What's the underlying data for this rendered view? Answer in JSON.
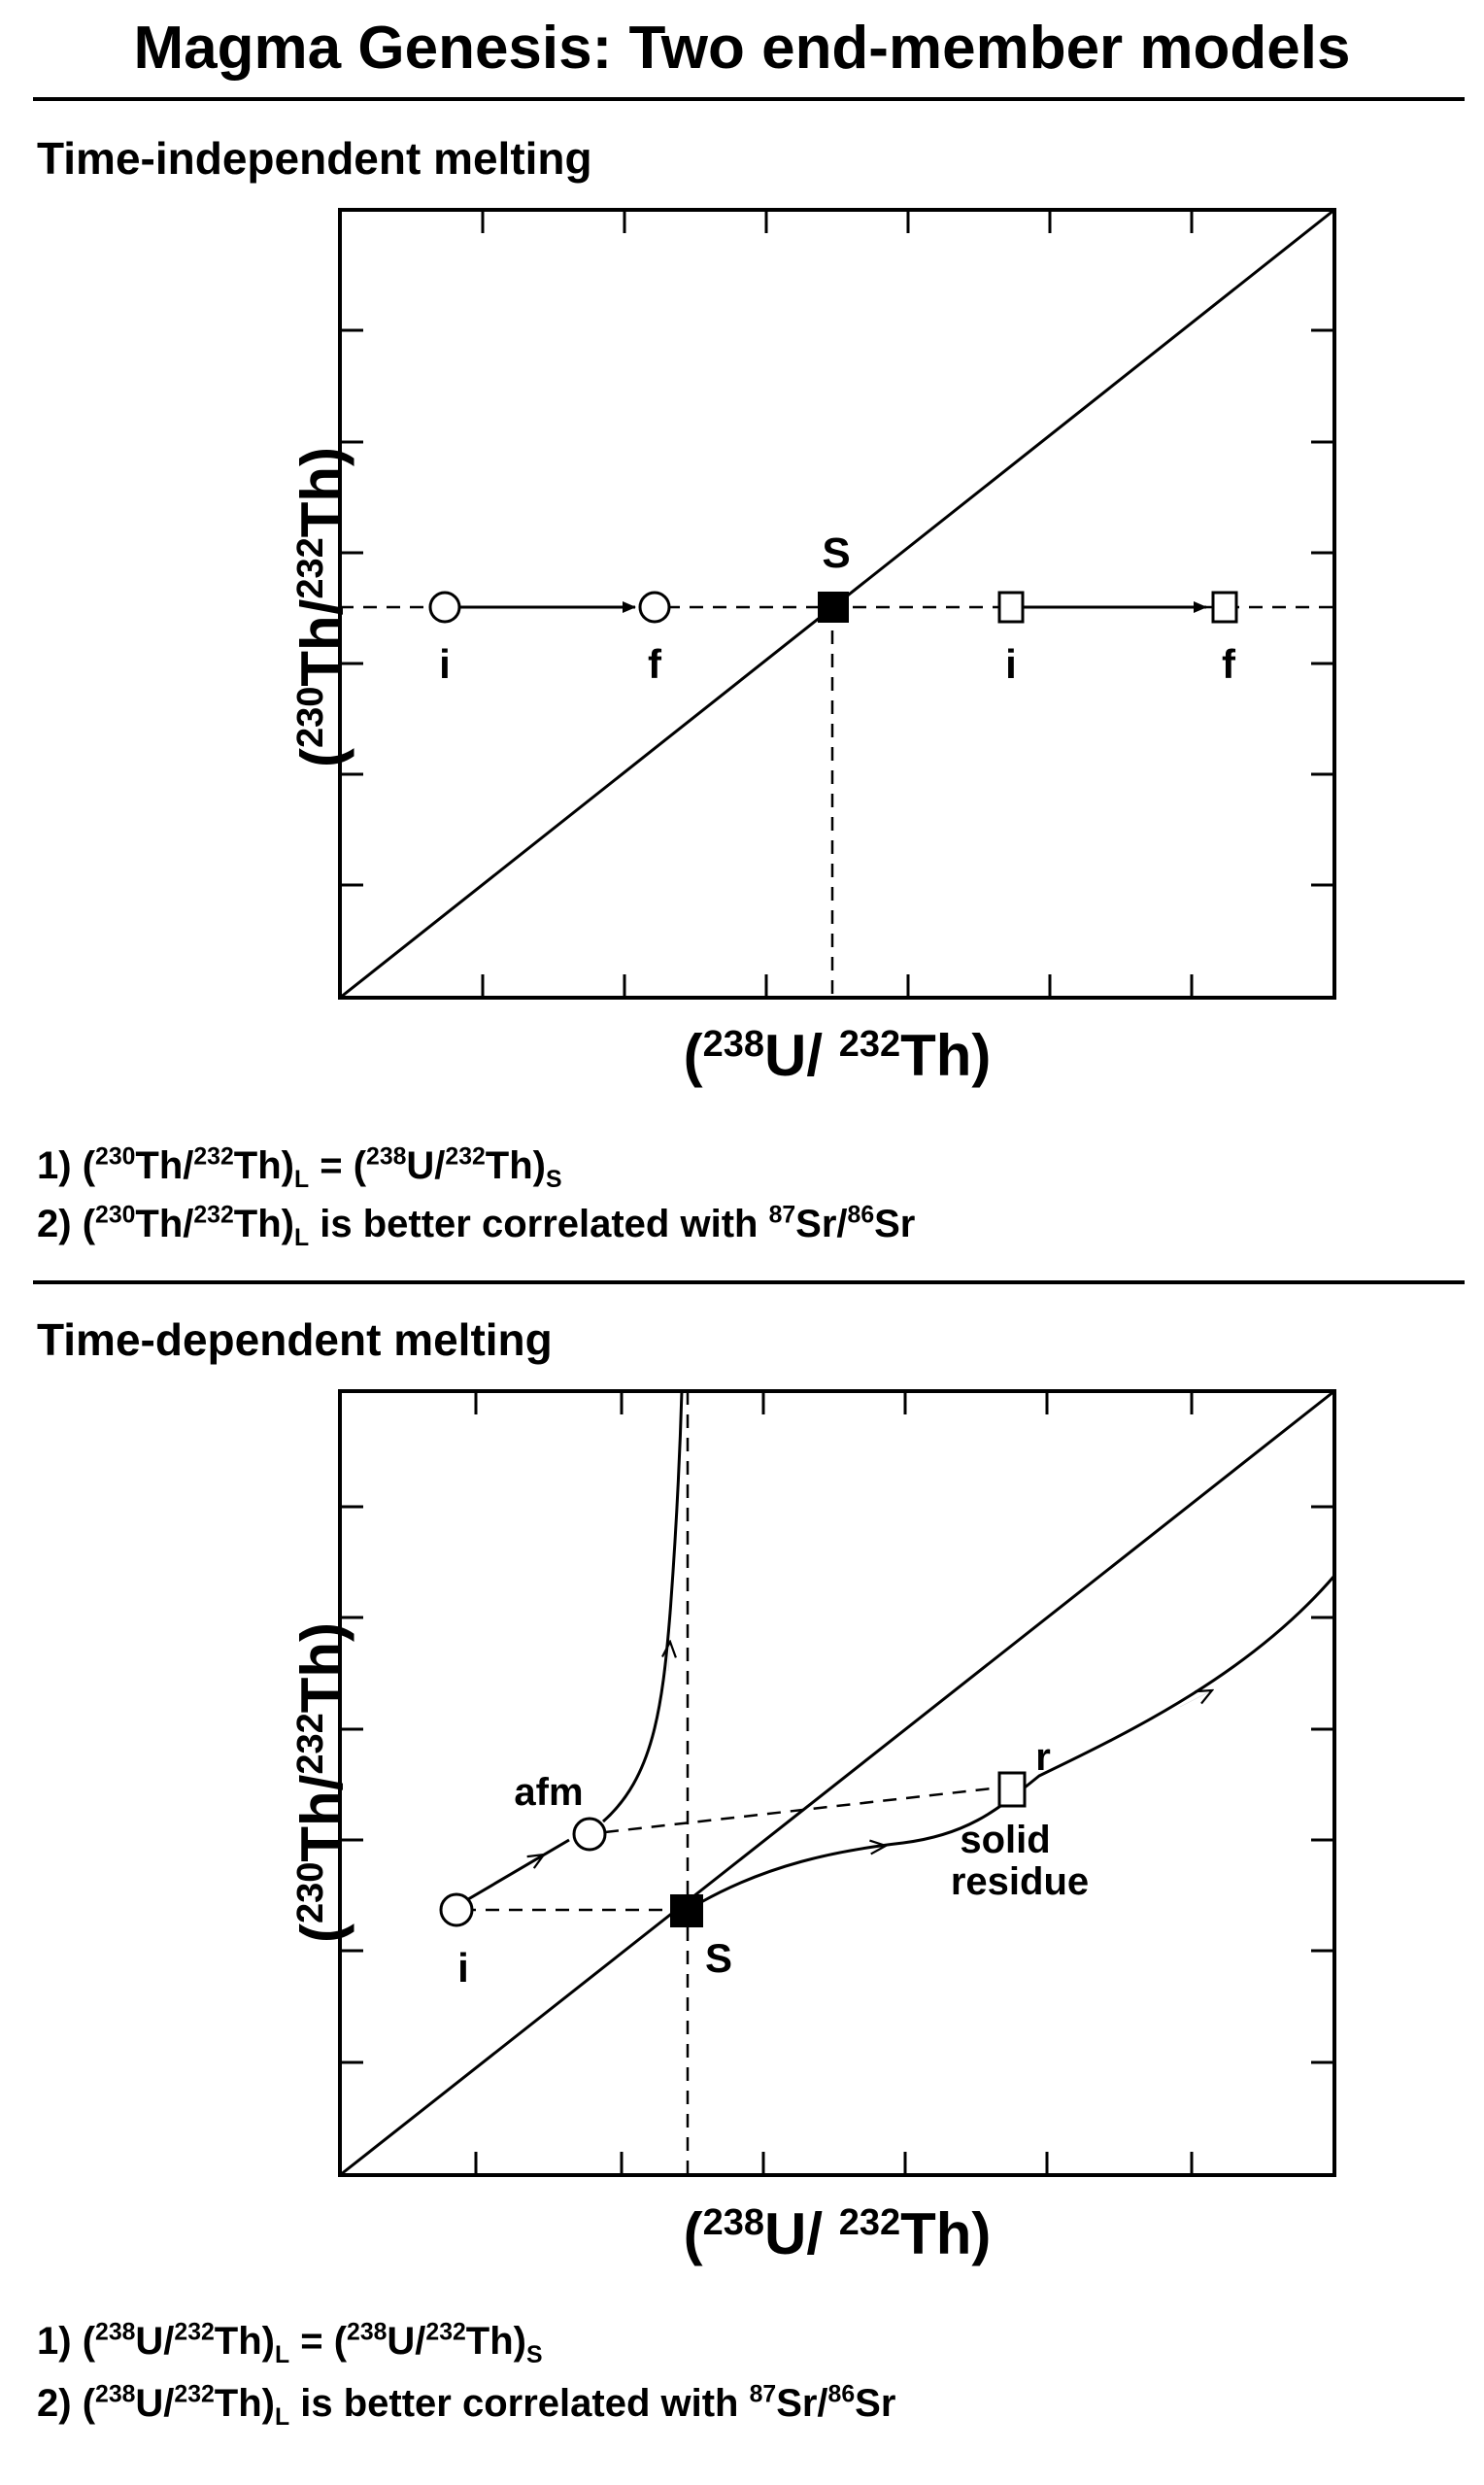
{
  "title": "Magma Genesis: Two end-member models",
  "top_panel": {
    "section_label": "Time-independent melting",
    "y_axis": {
      "open": "(",
      "sup": "230",
      "mid": "Th/",
      "sup2": "232",
      "end": "Th)"
    },
    "x_axis": {
      "open": "(",
      "sup": "238",
      "mid": "U/ ",
      "sup2": "232",
      "end": "Th)"
    },
    "points": {
      "s": "S",
      "circle_i": "i",
      "circle_f": "f",
      "square_i": "i",
      "square_f": "f"
    },
    "notes": [
      {
        "num": "1)",
        "a_open": "(",
        "a_sup1": "230",
        "a_mid": "Th/",
        "a_sup2": "232",
        "a_close": "Th)",
        "a_sub": "L",
        "eq": " = ",
        "b_open": "(",
        "b_sup1": "238",
        "b_mid": "U/",
        "b_sup2": "232",
        "b_close": "Th)",
        "b_sub": "S"
      },
      {
        "num": "2)",
        "a_open": "(",
        "a_sup1": "230",
        "a_mid": "Th/",
        "a_sup2": "232",
        "a_close": "Th)",
        "a_sub": "L",
        "text": " is better correlated with ",
        "sr_sup1": "87",
        "sr_mid": "Sr/",
        "sr_sup2": "86",
        "sr_end": "Sr"
      }
    ]
  },
  "bottom_panel": {
    "section_label": "Time-dependent melting",
    "y_axis": {
      "open": "(",
      "sup": "230",
      "mid": "Th/",
      "sup2": "232",
      "end": "Th)"
    },
    "x_axis": {
      "open": "(",
      "sup": "238",
      "mid": "U/ ",
      "sup2": "232",
      "end": "Th)"
    },
    "points": {
      "afm": "afm",
      "i": "i",
      "s": "S",
      "r": "r",
      "solid": "solid",
      "residue": "residue"
    },
    "notes": [
      {
        "num": "1)",
        "a_open": "(",
        "a_sup1": "238",
        "a_mid": "U/",
        "a_sup2": "232",
        "a_close": "Th)",
        "a_sub": "L",
        "eq": " = ",
        "b_open": "(",
        "b_sup1": "238",
        "b_mid": "U/",
        "b_sup2": "232",
        "b_close": "Th)",
        "b_sub": "S"
      },
      {
        "num": "2)",
        "a_open": "(",
        "a_sup1": "238",
        "a_mid": "U/",
        "a_sup2": "232",
        "a_close": "Th)",
        "a_sub": "L",
        "text": " is better correlated with ",
        "sr_sup1": "87",
        "sr_mid": "Sr/",
        "sr_sup2": "86",
        "sr_end": "Sr"
      }
    ]
  }
}
